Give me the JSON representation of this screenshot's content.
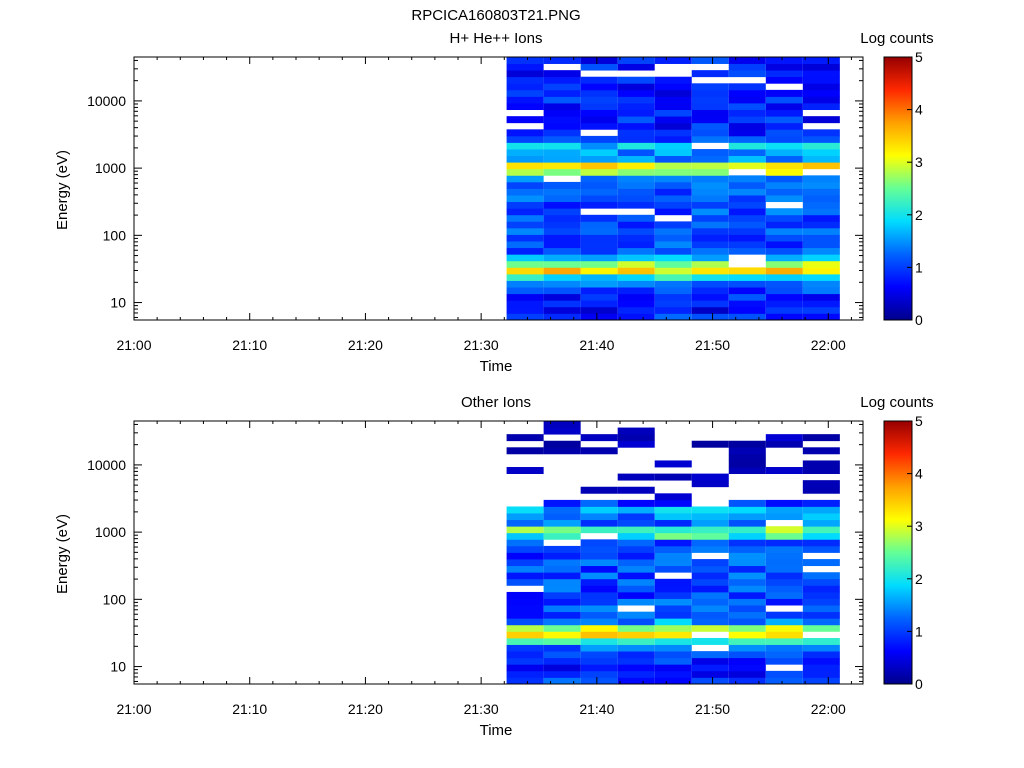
{
  "figure_title": "RPCICA160803T21.PNG",
  "colorbar_scale": {
    "colors": [
      "#00008b",
      "#0000ff",
      "#0064ff",
      "#00dcff",
      "#64ff96",
      "#ffff00",
      "#ffa000",
      "#ff2800",
      "#960000"
    ]
  },
  "chart_data": [
    {
      "type": "heatmap",
      "title": "H+ He++ Ions",
      "xlabel": "Time",
      "ylabel": "Energy (eV)",
      "x_ticks": [
        "21:00",
        "21:10",
        "21:20",
        "21:30",
        "21:40",
        "21:50",
        "22:00"
      ],
      "x_tick_minutes": [
        0,
        10,
        20,
        30,
        40,
        50,
        60
      ],
      "xlim_minutes": [
        0,
        63
      ],
      "y_scale": "log",
      "ylim": [
        5.5,
        45000
      ],
      "y_ticks": [
        "10",
        "100",
        "1000",
        "10000"
      ],
      "y_tick_values": [
        10,
        100,
        1000,
        10000
      ],
      "colorbar": {
        "label": "Log counts",
        "range": [
          0,
          5
        ],
        "ticks": [
          "0",
          "1",
          "2",
          "3",
          "4",
          "5"
        ]
      },
      "data_start_minute": 32.2,
      "column_width_minutes": 3.2,
      "n_columns": 9,
      "energy_bins": 40,
      "pattern": "Data from about 21:32 to 22:01. Peak log counts about 3-3.5 near 900-1100 eV and about 2.8-3.5 near 25-40 eV; background about 0.5-1.5 elsewhere; scattered empty bins (white)."
    },
    {
      "type": "heatmap",
      "title": "Other Ions",
      "xlabel": "Time",
      "ylabel": "Energy (eV)",
      "x_ticks": [
        "21:00",
        "21:10",
        "21:20",
        "21:30",
        "21:40",
        "21:50",
        "22:00"
      ],
      "x_tick_minutes": [
        0,
        10,
        20,
        30,
        40,
        50,
        60
      ],
      "xlim_minutes": [
        0,
        63
      ],
      "y_scale": "log",
      "ylim": [
        5.5,
        45000
      ],
      "y_ticks": [
        "10",
        "100",
        "1000",
        "10000"
      ],
      "y_tick_values": [
        10,
        100,
        1000,
        10000
      ],
      "colorbar": {
        "label": "Log counts",
        "range": [
          0,
          5
        ],
        "ticks": [
          "0",
          "1",
          "2",
          "3",
          "4",
          "5"
        ]
      },
      "data_start_minute": 32.2,
      "column_width_minutes": 3.2,
      "n_columns": 9,
      "energy_bins": 40,
      "pattern": "Data from about 21:32 to 22:01. Bright band near 900-1100 eV (log counts about 2-2.5), band near 25-40 eV (about 2.8-3.5); sparse low counts above 3000 eV."
    }
  ]
}
